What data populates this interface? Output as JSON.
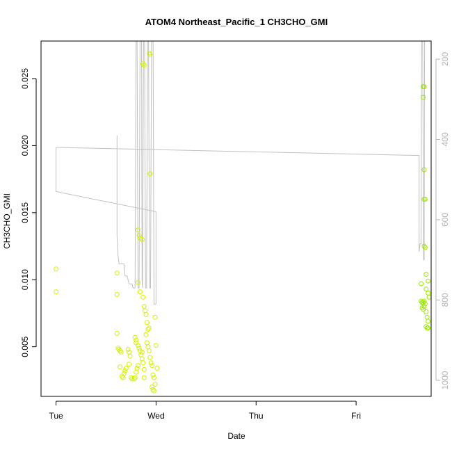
{
  "chart_data": {
    "type": "scatter",
    "title": "ATOM4 Northeast_Pacific_1 CH3CHO_GMI",
    "xlabel": "Date",
    "ylabel": "CH3CHO_GMI",
    "x_ticks": [
      "Tue",
      "Wed",
      "Thu",
      "Fri"
    ],
    "x_tick_values": [
      0,
      1,
      2,
      3
    ],
    "xlim": [
      -0.15,
      3.75
    ],
    "ylim": [
      0.0013,
      0.0278
    ],
    "y_ticks": [
      0.005,
      0.01,
      0.015,
      0.02,
      0.025
    ],
    "y_tick_labels": [
      "0.005",
      "0.010",
      "0.015",
      "0.020",
      "0.025"
    ],
    "y2_ticks": [
      200,
      400,
      600,
      800,
      1000
    ],
    "y2_tick_labels": [
      "200",
      "400",
      "600",
      "800",
      "1000"
    ],
    "y2lim": [
      1040,
      155
    ],
    "grid": false,
    "colors": {
      "early_points": "#d4f000",
      "late_points": "#9be800",
      "pressure_line": "#c0c0c0",
      "axis": "#000000",
      "y2_axis": "#b3b3b3"
    },
    "series": [
      {
        "values": [
          [
            0.0,
            0.0108
          ],
          [
            0.0,
            0.0091
          ],
          [
            0.61,
            0.0105
          ],
          [
            0.61,
            0.0089
          ],
          [
            0.61,
            0.006
          ],
          [
            0.62,
            0.0049
          ],
          [
            0.63,
            0.0048
          ],
          [
            0.64,
            0.0047
          ],
          [
            0.65,
            0.0046
          ],
          [
            0.64,
            0.0035
          ],
          [
            0.66,
            0.0028
          ],
          [
            0.67,
            0.0027
          ],
          [
            0.68,
            0.003
          ],
          [
            0.69,
            0.0032
          ],
          [
            0.7,
            0.0034
          ],
          [
            0.72,
            0.0048
          ],
          [
            0.73,
            0.0046
          ],
          [
            0.74,
            0.0043
          ],
          [
            0.73,
            0.0037
          ],
          [
            0.75,
            0.0027
          ],
          [
            0.76,
            0.0026
          ],
          [
            0.78,
            0.0026
          ],
          [
            0.79,
            0.0027
          ],
          [
            0.8,
            0.0031
          ],
          [
            0.81,
            0.0034
          ],
          [
            0.82,
            0.0036
          ],
          [
            0.79,
            0.0057
          ],
          [
            0.8,
            0.0055
          ],
          [
            0.8,
            0.0053
          ],
          [
            0.82,
            0.0051
          ],
          [
            0.83,
            0.0049
          ],
          [
            0.84,
            0.0047
          ],
          [
            0.85,
            0.0044
          ],
          [
            0.86,
            0.0046
          ],
          [
            0.86,
            0.0041
          ],
          [
            0.87,
            0.0038
          ],
          [
            0.88,
            0.0033
          ],
          [
            0.88,
            0.0027
          ],
          [
            0.82,
            0.0137
          ],
          [
            0.83,
            0.0133
          ],
          [
            0.84,
            0.0131
          ],
          [
            0.86,
            0.013
          ],
          [
            0.82,
            0.0098
          ],
          [
            0.84,
            0.0091
          ],
          [
            0.87,
            0.0261
          ],
          [
            0.88,
            0.026
          ],
          [
            0.87,
            0.0087
          ],
          [
            0.88,
            0.008
          ],
          [
            0.89,
            0.0077
          ],
          [
            0.9,
            0.0074
          ],
          [
            0.91,
            0.0068
          ],
          [
            0.92,
            0.0063
          ],
          [
            0.93,
            0.0064
          ],
          [
            0.9,
            0.0059
          ],
          [
            0.91,
            0.0053
          ],
          [
            0.92,
            0.005
          ],
          [
            0.93,
            0.0047
          ],
          [
            0.94,
            0.0042
          ],
          [
            0.95,
            0.0038
          ],
          [
            0.96,
            0.0036
          ],
          [
            0.97,
            0.0029
          ],
          [
            0.98,
            0.0027
          ],
          [
            0.96,
            0.002
          ],
          [
            0.97,
            0.0018
          ],
          [
            0.98,
            0.0017
          ],
          [
            0.99,
            0.0022
          ],
          [
            0.93,
            0.0269
          ],
          [
            0.94,
            0.0268
          ],
          [
            0.94,
            0.0179
          ],
          [
            0.99,
            0.0072
          ],
          [
            1.0,
            0.0051
          ],
          [
            1.01,
            0.0034
          ]
        ]
      },
      {
        "values": [
          [
            3.67,
            0.0244
          ],
          [
            3.68,
            0.0244
          ],
          [
            3.67,
            0.0236
          ],
          [
            3.68,
            0.0182
          ],
          [
            3.68,
            0.016
          ],
          [
            3.69,
            0.016
          ],
          [
            3.68,
            0.0125
          ],
          [
            3.69,
            0.0124
          ],
          [
            3.7,
            0.0104
          ],
          [
            3.72,
            0.0099
          ],
          [
            3.65,
            0.0097
          ],
          [
            3.7,
            0.0093
          ],
          [
            3.72,
            0.009
          ],
          [
            3.65,
            0.0084
          ],
          [
            3.66,
            0.0083
          ],
          [
            3.67,
            0.0083
          ],
          [
            3.68,
            0.0084
          ],
          [
            3.69,
            0.0082
          ],
          [
            3.73,
            0.0087
          ],
          [
            3.66,
            0.0079
          ],
          [
            3.67,
            0.0078
          ],
          [
            3.68,
            0.008
          ],
          [
            3.7,
            0.0076
          ],
          [
            3.71,
            0.0072
          ],
          [
            3.72,
            0.0069
          ],
          [
            3.7,
            0.0065
          ],
          [
            3.71,
            0.0064
          ],
          [
            3.72,
            0.0064
          ]
        ]
      }
    ],
    "line_series": [
      {
        "name": "pressure",
        "values": [
          [
            0.0,
            420
          ],
          [
            0.0,
            530
          ],
          [
            1.0,
            580
          ],
          [
            1.0,
            810
          ],
          [
            0.98,
            810
          ],
          [
            0.97,
            130
          ],
          [
            0.955,
            130
          ],
          [
            0.945,
            770
          ],
          [
            0.935,
            770
          ],
          [
            0.925,
            130
          ],
          [
            0.915,
            130
          ],
          [
            0.905,
            770
          ],
          [
            0.895,
            770
          ],
          [
            0.885,
            130
          ],
          [
            0.875,
            130
          ],
          [
            0.865,
            770
          ],
          [
            0.86,
            750
          ],
          [
            0.855,
            130
          ],
          [
            0.84,
            130
          ],
          [
            0.83,
            770
          ],
          [
            0.82,
            770
          ],
          [
            0.81,
            130
          ],
          [
            0.8,
            130
          ],
          [
            0.79,
            770
          ],
          [
            0.77,
            770
          ],
          [
            0.76,
            760
          ],
          [
            0.73,
            760
          ],
          [
            0.71,
            740
          ],
          [
            0.69,
            740
          ],
          [
            0.68,
            710
          ],
          [
            0.63,
            710
          ],
          [
            0.62,
            690
          ],
          [
            0.61,
            640
          ],
          [
            0.61,
            390
          ]
        ]
      },
      {
        "name": "pressure-late",
        "values": [
          [
            0.0,
            420
          ],
          [
            3.63,
            440
          ],
          [
            3.63,
            680
          ],
          [
            3.64,
            660
          ],
          [
            3.65,
            660
          ],
          [
            3.655,
            130
          ],
          [
            3.665,
            130
          ],
          [
            3.675,
            700
          ],
          [
            3.68,
            700
          ],
          [
            3.685,
            130
          ]
        ]
      }
    ]
  }
}
